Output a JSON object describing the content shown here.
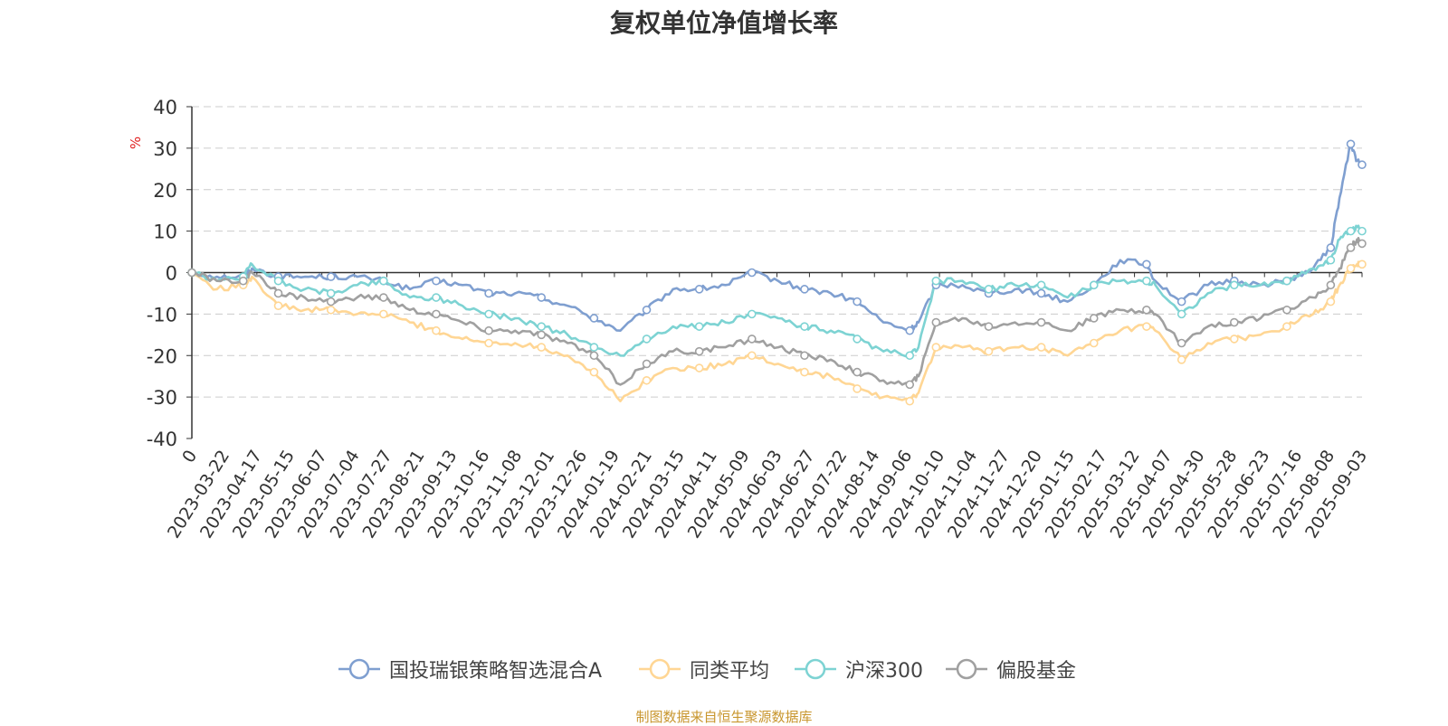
{
  "title": "复权单位净值增长率",
  "source_note": "制图数据来自恒生聚源数据库",
  "chart_data": {
    "type": "line",
    "title": "复权单位净值增长率",
    "ylabel": "%",
    "ylim": [
      -40,
      40
    ],
    "yticks": [
      -40,
      -30,
      -20,
      -10,
      0,
      10,
      20,
      30,
      40
    ],
    "xlim": [
      "2023-02-28",
      "2025-09-19"
    ],
    "xtick_labels": [
      "0",
      "2023-03-22",
      "2023-04-17",
      "2023-05-15",
      "2023-06-07",
      "2023-07-04",
      "2023-07-27",
      "2023-08-21",
      "2023-09-13",
      "2023-10-16",
      "2023-11-08",
      "2023-12-01",
      "2023-12-26",
      "2024-01-19",
      "2024-02-21",
      "2024-03-15",
      "2024-04-11",
      "2024-05-09",
      "2024-06-03",
      "2024-06-27",
      "2024-07-22",
      "2024-08-14",
      "2024-09-06",
      "2024-10-10",
      "2024-11-04",
      "2024-11-27",
      "2024-12-20",
      "2025-01-15",
      "2025-02-17",
      "2025-03-12",
      "2025-04-07",
      "2025-04-30",
      "2025-05-28",
      "2025-06-23",
      "2025-07-16",
      "2025-08-08",
      "2025-09-03"
    ],
    "grid": true,
    "legend_position": "bottom",
    "dates": [
      "2023-02-28",
      "2023-03-20",
      "2023-04-10",
      "2023-04-17",
      "2023-05-08",
      "2023-05-29",
      "2023-06-19",
      "2023-07-10",
      "2023-07-31",
      "2023-08-21",
      "2023-09-11",
      "2023-10-02",
      "2023-10-23",
      "2023-11-13",
      "2023-12-04",
      "2023-12-25",
      "2024-01-15",
      "2024-02-05",
      "2024-02-26",
      "2024-03-18",
      "2024-04-08",
      "2024-04-29",
      "2024-05-20",
      "2024-06-10",
      "2024-07-01",
      "2024-07-22",
      "2024-08-12",
      "2024-09-02",
      "2024-09-23",
      "2024-09-30",
      "2024-10-14",
      "2024-11-04",
      "2024-11-25",
      "2024-12-16",
      "2025-01-06",
      "2025-01-27",
      "2025-02-17",
      "2025-03-10",
      "2025-03-31",
      "2025-04-07",
      "2025-04-28",
      "2025-05-19",
      "2025-06-09",
      "2025-06-30",
      "2025-07-21",
      "2025-08-11",
      "2025-08-25",
      "2025-09-01",
      "2025-09-10",
      "2025-09-15",
      "2025-09-19"
    ],
    "series": [
      {
        "name": "国投瑞银策略智选混合A",
        "color": "#7f9fd0",
        "values": [
          0,
          -1,
          -1,
          1,
          -1,
          -1,
          -1,
          -1,
          -2,
          -4,
          -2,
          -3,
          -5,
          -5,
          -6,
          -8,
          -11,
          -14,
          -9,
          -4,
          -4,
          -3,
          0,
          -2,
          -4,
          -5,
          -7,
          -12,
          -14,
          -12,
          -3,
          -3,
          -5,
          -4,
          -5,
          -7,
          -3,
          3,
          2,
          -2,
          -7,
          -3,
          -2,
          -3,
          -2,
          1,
          6,
          18,
          31,
          27,
          26
        ]
      },
      {
        "name": "同类平均",
        "color": "#ffd694",
        "values": [
          0,
          -4,
          -3,
          -1,
          -8,
          -9,
          -9,
          -10,
          -10,
          -12,
          -14,
          -16,
          -17,
          -17,
          -18,
          -20,
          -24,
          -31,
          -26,
          -23,
          -23,
          -22,
          -20,
          -22,
          -24,
          -25,
          -28,
          -30,
          -31,
          -29,
          -18,
          -18,
          -19,
          -18,
          -18,
          -20,
          -17,
          -14,
          -13,
          -14,
          -21,
          -17,
          -16,
          -15,
          -13,
          -10,
          -7,
          -3,
          1,
          2,
          2
        ]
      },
      {
        "name": "沪深300",
        "color": "#7dd3d3",
        "values": [
          0,
          -2,
          -1,
          2,
          -2,
          -4,
          -5,
          -3,
          -2,
          -6,
          -6,
          -8,
          -10,
          -11,
          -13,
          -15,
          -18,
          -20,
          -16,
          -13,
          -13,
          -12,
          -10,
          -11,
          -13,
          -14,
          -16,
          -19,
          -20,
          -18,
          -2,
          -2,
          -4,
          -3,
          -3,
          -6,
          -3,
          -2,
          -2,
          -3,
          -10,
          -5,
          -3,
          -3,
          -2,
          1,
          3,
          8,
          10,
          11,
          10
        ]
      },
      {
        "name": "偏股基金",
        "color": "#a0a0a0",
        "values": [
          0,
          -2,
          -2,
          0,
          -5,
          -6,
          -7,
          -6,
          -6,
          -9,
          -10,
          -12,
          -14,
          -14,
          -15,
          -17,
          -20,
          -27,
          -22,
          -19,
          -19,
          -18,
          -16,
          -18,
          -20,
          -21,
          -24,
          -26,
          -27,
          -25,
          -12,
          -11,
          -13,
          -12,
          -12,
          -14,
          -11,
          -9,
          -9,
          -10,
          -17,
          -13,
          -12,
          -11,
          -9,
          -6,
          -3,
          1,
          6,
          8,
          7
        ]
      }
    ]
  }
}
